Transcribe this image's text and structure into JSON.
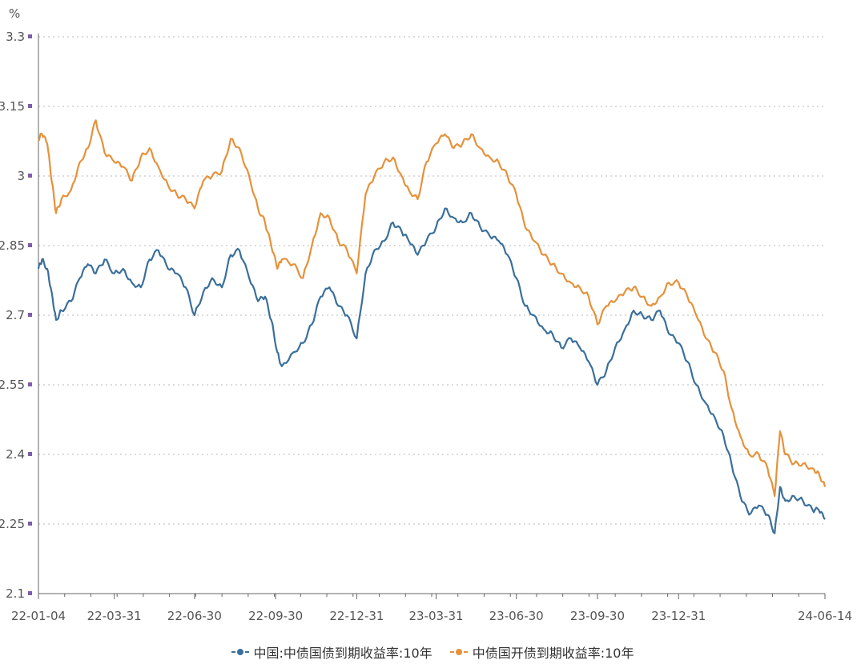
{
  "chart_data": {
    "type": "line",
    "unit_label": "%",
    "y_ticks": [
      "3.3",
      "3.15",
      "3",
      "2.85",
      "2.7",
      "2.55",
      "2.4",
      "2.25",
      "2.1"
    ],
    "x_ticks": [
      "22-01-04",
      "22-03-31",
      "22-06-30",
      "22-09-30",
      "22-12-31",
      "23-03-31",
      "23-06-30",
      "23-09-30",
      "23-12-31",
      "24-06-14"
    ],
    "ylim": [
      2.1,
      3.3
    ],
    "grid": true,
    "colors": {
      "series1": "#3a6f9a",
      "series2": "#e6913a"
    },
    "series": [
      {
        "name": "中国:中债国债到期收益率:10年",
        "points": [
          [
            "2022-01-04",
            2.8
          ],
          [
            "2022-01-08",
            2.82
          ],
          [
            "2022-01-14",
            2.8
          ],
          [
            "2022-01-19",
            2.75
          ],
          [
            "2022-01-24",
            2.69
          ],
          [
            "2022-01-30",
            2.71
          ],
          [
            "2022-02-10",
            2.73
          ],
          [
            "2022-02-20",
            2.78
          ],
          [
            "2022-03-01",
            2.81
          ],
          [
            "2022-03-10",
            2.79
          ],
          [
            "2022-03-20",
            2.82
          ],
          [
            "2022-03-31",
            2.79
          ],
          [
            "2022-04-10",
            2.8
          ],
          [
            "2022-04-20",
            2.77
          ],
          [
            "2022-04-30",
            2.76
          ],
          [
            "2022-05-10",
            2.82
          ],
          [
            "2022-05-20",
            2.84
          ],
          [
            "2022-05-31",
            2.8
          ],
          [
            "2022-06-10",
            2.79
          ],
          [
            "2022-06-20",
            2.76
          ],
          [
            "2022-06-30",
            2.7
          ],
          [
            "2022-07-10",
            2.75
          ],
          [
            "2022-07-20",
            2.78
          ],
          [
            "2022-07-31",
            2.76
          ],
          [
            "2022-08-10",
            2.83
          ],
          [
            "2022-08-20",
            2.84
          ],
          [
            "2022-08-31",
            2.78
          ],
          [
            "2022-09-10",
            2.73
          ],
          [
            "2022-09-18",
            2.74
          ],
          [
            "2022-09-25",
            2.69
          ],
          [
            "2022-10-02",
            2.62
          ],
          [
            "2022-10-07",
            2.59
          ],
          [
            "2022-10-20",
            2.62
          ],
          [
            "2022-10-31",
            2.64
          ],
          [
            "2022-11-10",
            2.68
          ],
          [
            "2022-11-20",
            2.74
          ],
          [
            "2022-11-30",
            2.76
          ],
          [
            "2022-12-10",
            2.72
          ],
          [
            "2022-12-20",
            2.7
          ],
          [
            "2022-12-31",
            2.65
          ],
          [
            "2023-01-10",
            2.79
          ],
          [
            "2023-01-20",
            2.84
          ],
          [
            "2023-01-31",
            2.86
          ],
          [
            "2023-02-10",
            2.9
          ],
          [
            "2023-02-20",
            2.88
          ],
          [
            "2023-02-28",
            2.86
          ],
          [
            "2023-03-10",
            2.83
          ],
          [
            "2023-03-20",
            2.86
          ],
          [
            "2023-03-31",
            2.89
          ],
          [
            "2023-04-10",
            2.93
          ],
          [
            "2023-04-20",
            2.91
          ],
          [
            "2023-04-30",
            2.9
          ],
          [
            "2023-05-10",
            2.92
          ],
          [
            "2023-05-20",
            2.89
          ],
          [
            "2023-05-31",
            2.87
          ],
          [
            "2023-06-10",
            2.86
          ],
          [
            "2023-06-20",
            2.83
          ],
          [
            "2023-06-30",
            2.78
          ],
          [
            "2023-07-10",
            2.72
          ],
          [
            "2023-07-20",
            2.7
          ],
          [
            "2023-07-31",
            2.67
          ],
          [
            "2023-08-10",
            2.66
          ],
          [
            "2023-08-20",
            2.63
          ],
          [
            "2023-08-31",
            2.65
          ],
          [
            "2023-09-10",
            2.63
          ],
          [
            "2023-09-20",
            2.6
          ],
          [
            "2023-09-30",
            2.55
          ],
          [
            "2023-10-10",
            2.58
          ],
          [
            "2023-10-20",
            2.63
          ],
          [
            "2023-10-31",
            2.67
          ],
          [
            "2023-11-10",
            2.71
          ],
          [
            "2023-11-20",
            2.7
          ],
          [
            "2023-11-30",
            2.69
          ],
          [
            "2023-12-10",
            2.71
          ],
          [
            "2023-12-20",
            2.66
          ],
          [
            "2023-12-31",
            2.64
          ],
          [
            "2024-01-10",
            2.6
          ],
          [
            "2024-01-20",
            2.55
          ],
          [
            "2024-01-31",
            2.51
          ],
          [
            "2024-02-10",
            2.48
          ],
          [
            "2024-02-20",
            2.44
          ],
          [
            "2024-02-29",
            2.38
          ],
          [
            "2024-03-10",
            2.31
          ],
          [
            "2024-03-20",
            2.27
          ],
          [
            "2024-03-31",
            2.29
          ],
          [
            "2024-04-10",
            2.27
          ],
          [
            "2024-04-18",
            2.23
          ],
          [
            "2024-04-24",
            2.33
          ],
          [
            "2024-04-30",
            2.3
          ],
          [
            "2024-05-10",
            2.31
          ],
          [
            "2024-05-20",
            2.3
          ],
          [
            "2024-05-31",
            2.28
          ],
          [
            "2024-06-07",
            2.28
          ],
          [
            "2024-06-14",
            2.26
          ]
        ]
      },
      {
        "name": "中债国开债到期收益率:10年",
        "points": [
          [
            "2022-01-04",
            3.08
          ],
          [
            "2022-01-08",
            3.09
          ],
          [
            "2022-01-14",
            3.07
          ],
          [
            "2022-01-19",
            2.99
          ],
          [
            "2022-01-24",
            2.92
          ],
          [
            "2022-01-30",
            2.95
          ],
          [
            "2022-02-10",
            2.97
          ],
          [
            "2022-02-20",
            3.03
          ],
          [
            "2022-03-01",
            3.06
          ],
          [
            "2022-03-10",
            3.12
          ],
          [
            "2022-03-20",
            3.05
          ],
          [
            "2022-03-31",
            3.03
          ],
          [
            "2022-04-10",
            3.02
          ],
          [
            "2022-04-20",
            2.99
          ],
          [
            "2022-04-30",
            3.04
          ],
          [
            "2022-05-10",
            3.06
          ],
          [
            "2022-05-20",
            3.02
          ],
          [
            "2022-05-31",
            2.98
          ],
          [
            "2022-06-10",
            2.96
          ],
          [
            "2022-06-20",
            2.95
          ],
          [
            "2022-06-30",
            2.93
          ],
          [
            "2022-07-10",
            2.99
          ],
          [
            "2022-07-20",
            3.0
          ],
          [
            "2022-07-31",
            3.01
          ],
          [
            "2022-08-10",
            3.08
          ],
          [
            "2022-08-20",
            3.06
          ],
          [
            "2022-08-31",
            3.0
          ],
          [
            "2022-09-10",
            2.93
          ],
          [
            "2022-09-18",
            2.9
          ],
          [
            "2022-09-25",
            2.85
          ],
          [
            "2022-10-02",
            2.8
          ],
          [
            "2022-10-07",
            2.82
          ],
          [
            "2022-10-20",
            2.81
          ],
          [
            "2022-10-31",
            2.78
          ],
          [
            "2022-11-10",
            2.85
          ],
          [
            "2022-11-20",
            2.92
          ],
          [
            "2022-11-30",
            2.91
          ],
          [
            "2022-12-10",
            2.86
          ],
          [
            "2022-12-20",
            2.84
          ],
          [
            "2022-12-31",
            2.79
          ],
          [
            "2023-01-10",
            2.96
          ],
          [
            "2023-01-20",
            3.0
          ],
          [
            "2023-01-31",
            3.03
          ],
          [
            "2023-02-10",
            3.04
          ],
          [
            "2023-02-20",
            3.0
          ],
          [
            "2023-02-28",
            2.97
          ],
          [
            "2023-03-10",
            2.95
          ],
          [
            "2023-03-20",
            3.03
          ],
          [
            "2023-03-31",
            3.07
          ],
          [
            "2023-04-10",
            3.09
          ],
          [
            "2023-04-20",
            3.06
          ],
          [
            "2023-04-30",
            3.07
          ],
          [
            "2023-05-10",
            3.09
          ],
          [
            "2023-05-20",
            3.06
          ],
          [
            "2023-05-31",
            3.04
          ],
          [
            "2023-06-10",
            3.03
          ],
          [
            "2023-06-20",
            3.0
          ],
          [
            "2023-06-30",
            2.96
          ],
          [
            "2023-07-10",
            2.89
          ],
          [
            "2023-07-20",
            2.86
          ],
          [
            "2023-07-31",
            2.83
          ],
          [
            "2023-08-10",
            2.81
          ],
          [
            "2023-08-20",
            2.79
          ],
          [
            "2023-08-31",
            2.77
          ],
          [
            "2023-09-10",
            2.76
          ],
          [
            "2023-09-20",
            2.74
          ],
          [
            "2023-09-30",
            2.68
          ],
          [
            "2023-10-10",
            2.72
          ],
          [
            "2023-10-20",
            2.73
          ],
          [
            "2023-10-31",
            2.75
          ],
          [
            "2023-11-10",
            2.76
          ],
          [
            "2023-11-20",
            2.74
          ],
          [
            "2023-11-30",
            2.72
          ],
          [
            "2023-12-10",
            2.74
          ],
          [
            "2023-12-20",
            2.77
          ],
          [
            "2023-12-31",
            2.77
          ],
          [
            "2024-01-10",
            2.74
          ],
          [
            "2024-01-20",
            2.7
          ],
          [
            "2024-01-31",
            2.65
          ],
          [
            "2024-02-10",
            2.62
          ],
          [
            "2024-02-20",
            2.58
          ],
          [
            "2024-02-29",
            2.5
          ],
          [
            "2024-03-10",
            2.44
          ],
          [
            "2024-03-20",
            2.4
          ],
          [
            "2024-03-31",
            2.4
          ],
          [
            "2024-04-10",
            2.37
          ],
          [
            "2024-04-18",
            2.31
          ],
          [
            "2024-04-24",
            2.45
          ],
          [
            "2024-04-30",
            2.4
          ],
          [
            "2024-05-10",
            2.38
          ],
          [
            "2024-05-20",
            2.38
          ],
          [
            "2024-05-31",
            2.37
          ],
          [
            "2024-06-07",
            2.36
          ],
          [
            "2024-06-14",
            2.33
          ]
        ]
      }
    ]
  }
}
